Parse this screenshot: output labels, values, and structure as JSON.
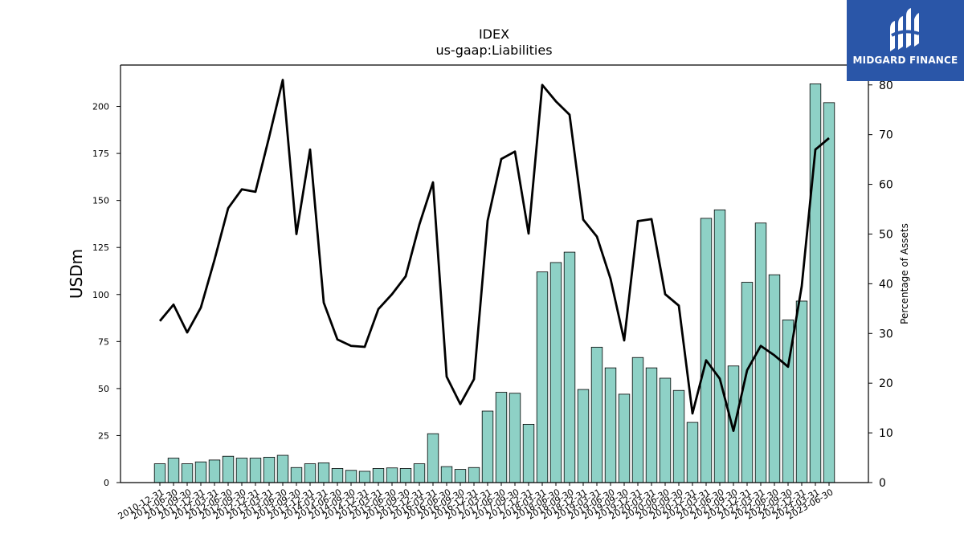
{
  "chart_data": {
    "type": "bar",
    "title": "IDEX",
    "subtitle": "us-gaap:Liabilities",
    "ylabel": "USDm",
    "y2label": "Percentage of Assets",
    "ylim": [
      0,
      222
    ],
    "y2lim": [
      0,
      84
    ],
    "yticks": [
      "0",
      "25",
      "50",
      "75",
      "100",
      "125",
      "150",
      "175",
      "200"
    ],
    "y2ticks": [
      "0",
      "10",
      "20",
      "30",
      "40",
      "50",
      "60",
      "70",
      "80"
    ],
    "categories": [
      "2010-12-31",
      "2011-06-30",
      "2011-09-30",
      "2011-12-31",
      "2012-03-31",
      "2012-06-30",
      "2012-09-30",
      "2012-12-31",
      "2013-03-31",
      "2013-06-30",
      "2013-09-30",
      "2013-12-31",
      "2014-03-31",
      "2014-06-30",
      "2014-09-30",
      "2014-12-31",
      "2015-03-31",
      "2015-06-30",
      "2015-09-30",
      "2015-12-31",
      "2016-03-31",
      "2016-06-30",
      "2016-09-30",
      "2016-12-31",
      "2017-03-31",
      "2017-06-30",
      "2017-09-30",
      "2017-12-31",
      "2018-03-31",
      "2018-06-30",
      "2018-09-30",
      "2018-12-31",
      "2019-03-31",
      "2019-06-30",
      "2019-09-30",
      "2019-12-31",
      "2020-03-31",
      "2020-06-30",
      "2020-09-30",
      "2020-12-31",
      "2021-03-31",
      "2021-06-30",
      "2021-09-30",
      "2021-12-31",
      "2022-03-31",
      "2022-06-30",
      "2022-09-30",
      "2022-12-31",
      "2023-03-31",
      "2023-06-30"
    ],
    "series": [
      {
        "name": "Liabilities",
        "axis": "left",
        "type": "bar",
        "values": [
          10,
          13,
          10,
          11,
          12,
          14,
          13,
          13,
          13.5,
          14.5,
          8,
          10,
          10.5,
          7.5,
          6.5,
          6,
          7.5,
          7.8,
          7.5,
          10,
          26,
          8.5,
          7,
          8,
          38,
          48,
          47.5,
          31,
          112,
          117,
          122.5,
          49.5,
          72,
          61,
          47,
          66.5,
          61,
          55.5,
          49,
          32,
          140.5,
          145,
          62,
          106.5,
          138,
          110.5,
          86.5,
          96.5,
          212,
          202
        ]
      },
      {
        "name": "Percentage of Assets",
        "axis": "right",
        "type": "line",
        "values": [
          32.5,
          35.8,
          30.2,
          35.2,
          44.8,
          55.2,
          59,
          58.5,
          69.5,
          81,
          50,
          67,
          36.2,
          28.8,
          27.5,
          27.3,
          34.9,
          37.9,
          41.5,
          51.9,
          60.4,
          21.3,
          15.8,
          20.8,
          52.7,
          65.1,
          66.6,
          50.1,
          80,
          76.7,
          74,
          52.9,
          49.5,
          41,
          28.6,
          52.6,
          53,
          37.9,
          35.6,
          13.9,
          24.6,
          20.9,
          10.4,
          22.6,
          27.5,
          25.6,
          23.3,
          39.5,
          67,
          69.3
        ]
      }
    ],
    "colors": {
      "bar_fill": "#8ed1c6",
      "bar_edge": "#000000",
      "line": "#000000"
    },
    "grid": false,
    "legend": "none"
  },
  "logo": {
    "text": "MIDGARD FINANCE",
    "background": "#2a56a8"
  }
}
